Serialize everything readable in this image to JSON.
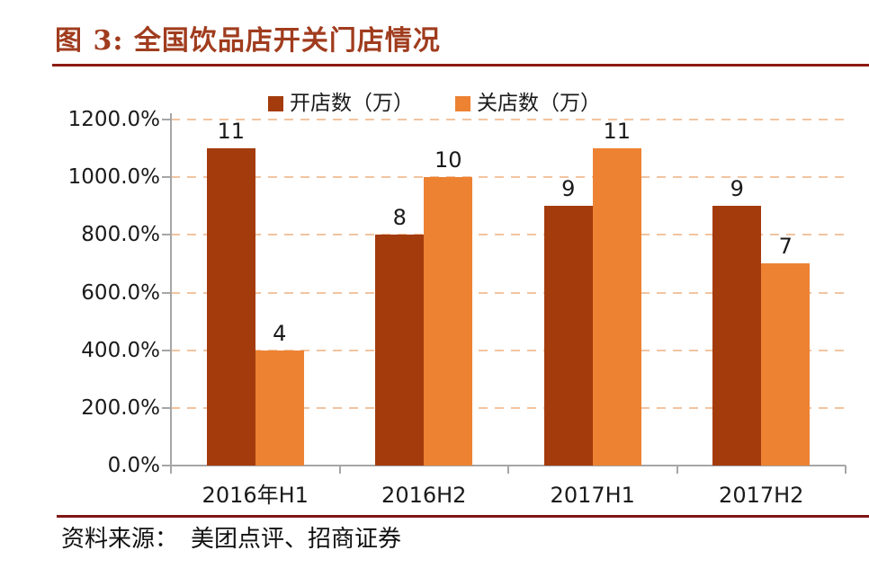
{
  "figure": {
    "title": "图 3: 全国饮品店开关门店情况",
    "source_prefix": "资料来源：",
    "source": "美团点评、招商证券"
  },
  "colors": {
    "title_text": "#A03C1E",
    "title_rule": "#8C1B12",
    "bottom_rule": "#7F1616",
    "gridline": "#F2C4A0",
    "axis": "#A6A6A6",
    "label_text": "#1A1A1A"
  },
  "chart_data": {
    "type": "bar",
    "title": "全国饮品店开关门店情况",
    "categories": [
      "2016年H1",
      "2016H2",
      "2017H1",
      "2017H2"
    ],
    "series": [
      {
        "name": "开店数（万）",
        "values": [
          11,
          8,
          9,
          9
        ],
        "color": "#A43B0D"
      },
      {
        "name": "关店数（万）",
        "values": [
          4,
          10,
          11,
          7
        ],
        "color": "#ED8233"
      }
    ],
    "data_labels_shown": true,
    "y_axis": {
      "min": 0,
      "max": 1200,
      "step": 200,
      "unit": "%",
      "tick_labels": [
        "0.0%",
        "200.0%",
        "400.0%",
        "600.0%",
        "800.0%",
        "1000.0%",
        "1200.0%"
      ]
    },
    "value_to_axis_factor": 100,
    "grid": "horizontal-dashed",
    "legend_position": "top-center",
    "xlabel": "",
    "ylabel": ""
  }
}
